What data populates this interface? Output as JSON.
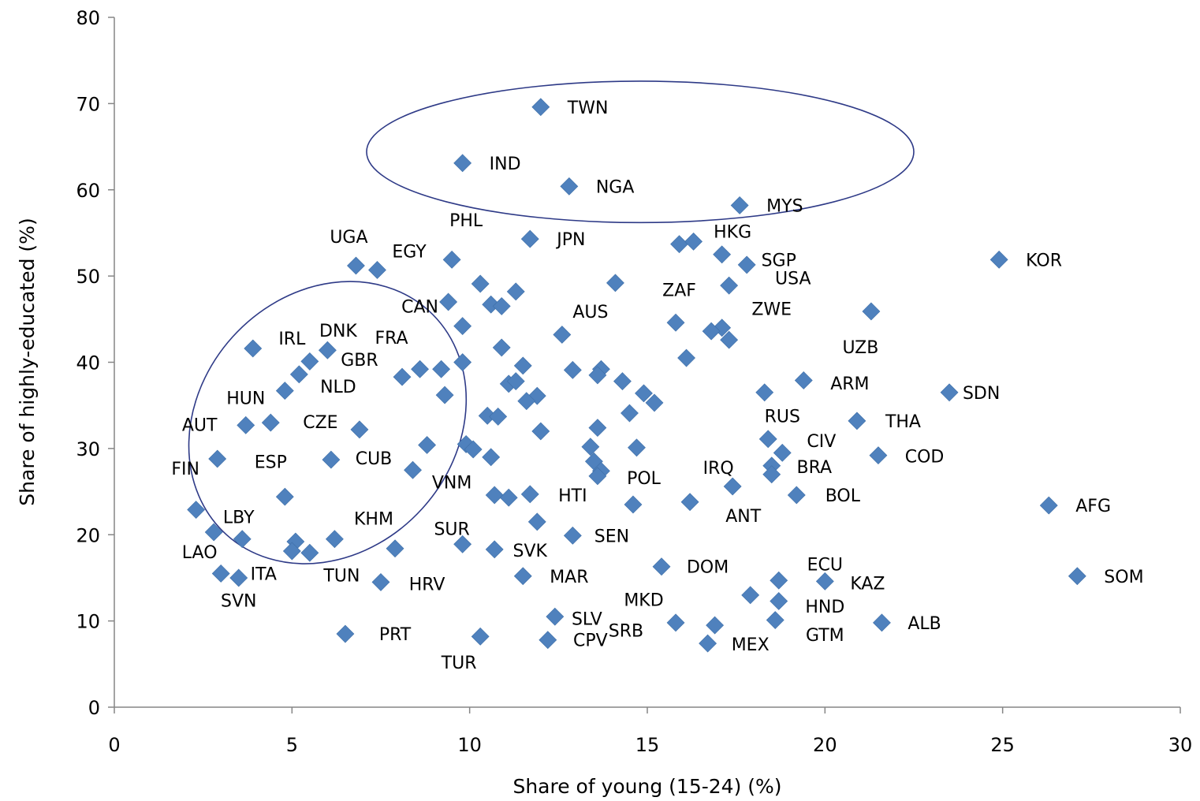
{
  "chart_data": {
    "type": "scatter",
    "xlabel": "Share of young (15-24) (%)",
    "ylabel": "Share of highly-educated (%)",
    "xlim": [
      0,
      30
    ],
    "ylim": [
      0,
      80
    ],
    "xticks": [
      0,
      5,
      10,
      15,
      20,
      25,
      30
    ],
    "yticks": [
      0,
      10,
      20,
      30,
      40,
      50,
      60,
      70,
      80
    ],
    "grid": false,
    "legend": "none",
    "marker_color": "#4F81BD",
    "ellipse_color": "#2E3A87",
    "points": [
      {
        "x": 12.0,
        "y": 69.6,
        "label": "TWN"
      },
      {
        "x": 9.8,
        "y": 63.1,
        "label": "IND"
      },
      {
        "x": 12.8,
        "y": 60.4,
        "label": "NGA"
      },
      {
        "x": 17.6,
        "y": 58.2,
        "label": "MYS"
      },
      {
        "x": 11.7,
        "y": 54.3,
        "label": "JPN"
      },
      {
        "x": 15.9,
        "y": 53.7,
        "label": ""
      },
      {
        "x": 16.3,
        "y": 54.0,
        "label": ""
      },
      {
        "x": 17.1,
        "y": 52.5,
        "label": ""
      },
      {
        "x": 17.8,
        "y": 51.3,
        "label": ""
      },
      {
        "x": 24.9,
        "y": 51.9,
        "label": "KOR"
      },
      {
        "x": 6.8,
        "y": 51.2,
        "label": ""
      },
      {
        "x": 7.4,
        "y": 50.7,
        "label": ""
      },
      {
        "x": 9.5,
        "y": 51.9,
        "label": ""
      },
      {
        "x": 10.3,
        "y": 49.1,
        "label": ""
      },
      {
        "x": 11.3,
        "y": 48.2,
        "label": ""
      },
      {
        "x": 14.1,
        "y": 49.2,
        "label": ""
      },
      {
        "x": 17.3,
        "y": 48.9,
        "label": ""
      },
      {
        "x": 9.4,
        "y": 47.0,
        "label": ""
      },
      {
        "x": 10.6,
        "y": 46.7,
        "label": ""
      },
      {
        "x": 10.9,
        "y": 46.5,
        "label": ""
      },
      {
        "x": 21.3,
        "y": 45.9,
        "label": ""
      },
      {
        "x": 9.8,
        "y": 44.2,
        "label": ""
      },
      {
        "x": 15.8,
        "y": 44.6,
        "label": ""
      },
      {
        "x": 17.1,
        "y": 44.0,
        "label": ""
      },
      {
        "x": 16.8,
        "y": 43.6,
        "label": ""
      },
      {
        "x": 12.6,
        "y": 43.2,
        "label": ""
      },
      {
        "x": 17.3,
        "y": 42.6,
        "label": ""
      },
      {
        "x": 3.9,
        "y": 41.6,
        "label": ""
      },
      {
        "x": 6.0,
        "y": 41.4,
        "label": ""
      },
      {
        "x": 10.9,
        "y": 41.7,
        "label": ""
      },
      {
        "x": 16.1,
        "y": 40.5,
        "label": ""
      },
      {
        "x": 5.5,
        "y": 40.1,
        "label": ""
      },
      {
        "x": 9.8,
        "y": 40.0,
        "label": ""
      },
      {
        "x": 11.5,
        "y": 39.6,
        "label": ""
      },
      {
        "x": 8.6,
        "y": 39.2,
        "label": ""
      },
      {
        "x": 9.2,
        "y": 39.2,
        "label": ""
      },
      {
        "x": 12.9,
        "y": 39.1,
        "label": ""
      },
      {
        "x": 13.7,
        "y": 39.2,
        "label": ""
      },
      {
        "x": 5.2,
        "y": 38.6,
        "label": ""
      },
      {
        "x": 8.1,
        "y": 38.3,
        "label": ""
      },
      {
        "x": 13.6,
        "y": 38.5,
        "label": ""
      },
      {
        "x": 14.3,
        "y": 37.8,
        "label": ""
      },
      {
        "x": 11.1,
        "y": 37.5,
        "label": ""
      },
      {
        "x": 11.3,
        "y": 37.8,
        "label": ""
      },
      {
        "x": 19.4,
        "y": 37.9,
        "label": ""
      },
      {
        "x": 4.8,
        "y": 36.7,
        "label": ""
      },
      {
        "x": 9.3,
        "y": 36.2,
        "label": ""
      },
      {
        "x": 11.9,
        "y": 36.1,
        "label": ""
      },
      {
        "x": 11.6,
        "y": 35.5,
        "label": ""
      },
      {
        "x": 14.9,
        "y": 36.4,
        "label": ""
      },
      {
        "x": 15.2,
        "y": 35.3,
        "label": ""
      },
      {
        "x": 18.3,
        "y": 36.5,
        "label": ""
      },
      {
        "x": 23.5,
        "y": 36.5,
        "label": ""
      },
      {
        "x": 14.5,
        "y": 34.1,
        "label": ""
      },
      {
        "x": 10.5,
        "y": 33.8,
        "label": ""
      },
      {
        "x": 10.8,
        "y": 33.7,
        "label": ""
      },
      {
        "x": 20.9,
        "y": 33.2,
        "label": ""
      },
      {
        "x": 3.7,
        "y": 32.7,
        "label": ""
      },
      {
        "x": 4.4,
        "y": 33.0,
        "label": ""
      },
      {
        "x": 6.9,
        "y": 32.2,
        "label": ""
      },
      {
        "x": 13.6,
        "y": 32.4,
        "label": ""
      },
      {
        "x": 12.0,
        "y": 32.0,
        "label": ""
      },
      {
        "x": 18.4,
        "y": 31.1,
        "label": ""
      },
      {
        "x": 8.8,
        "y": 30.4,
        "label": ""
      },
      {
        "x": 9.9,
        "y": 30.5,
        "label": ""
      },
      {
        "x": 10.1,
        "y": 29.9,
        "label": ""
      },
      {
        "x": 13.4,
        "y": 30.2,
        "label": ""
      },
      {
        "x": 14.7,
        "y": 30.1,
        "label": ""
      },
      {
        "x": 10.6,
        "y": 29.0,
        "label": ""
      },
      {
        "x": 18.8,
        "y": 29.5,
        "label": ""
      },
      {
        "x": 21.5,
        "y": 29.2,
        "label": ""
      },
      {
        "x": 2.9,
        "y": 28.8,
        "label": ""
      },
      {
        "x": 6.1,
        "y": 28.7,
        "label": ""
      },
      {
        "x": 13.5,
        "y": 28.5,
        "label": ""
      },
      {
        "x": 18.5,
        "y": 28.0,
        "label": ""
      },
      {
        "x": 8.4,
        "y": 27.5,
        "label": ""
      },
      {
        "x": 13.7,
        "y": 27.4,
        "label": ""
      },
      {
        "x": 13.6,
        "y": 26.8,
        "label": ""
      },
      {
        "x": 18.5,
        "y": 27.0,
        "label": ""
      },
      {
        "x": 17.4,
        "y": 25.6,
        "label": ""
      },
      {
        "x": 4.8,
        "y": 24.4,
        "label": ""
      },
      {
        "x": 10.7,
        "y": 24.6,
        "label": ""
      },
      {
        "x": 11.1,
        "y": 24.3,
        "label": ""
      },
      {
        "x": 11.7,
        "y": 24.7,
        "label": ""
      },
      {
        "x": 19.2,
        "y": 24.6,
        "label": ""
      },
      {
        "x": 14.6,
        "y": 23.5,
        "label": ""
      },
      {
        "x": 16.2,
        "y": 23.8,
        "label": ""
      },
      {
        "x": 26.3,
        "y": 23.4,
        "label": "AFG"
      },
      {
        "x": 2.3,
        "y": 22.9,
        "label": ""
      },
      {
        "x": 11.9,
        "y": 21.5,
        "label": ""
      },
      {
        "x": 2.8,
        "y": 20.3,
        "label": ""
      },
      {
        "x": 12.9,
        "y": 19.9,
        "label": ""
      },
      {
        "x": 3.6,
        "y": 19.5,
        "label": ""
      },
      {
        "x": 6.2,
        "y": 19.5,
        "label": ""
      },
      {
        "x": 5.1,
        "y": 19.2,
        "label": ""
      },
      {
        "x": 9.8,
        "y": 18.9,
        "label": ""
      },
      {
        "x": 7.9,
        "y": 18.4,
        "label": ""
      },
      {
        "x": 10.7,
        "y": 18.3,
        "label": ""
      },
      {
        "x": 5.0,
        "y": 18.1,
        "label": ""
      },
      {
        "x": 5.5,
        "y": 17.9,
        "label": ""
      },
      {
        "x": 15.4,
        "y": 16.3,
        "label": ""
      },
      {
        "x": 3.0,
        "y": 15.5,
        "label": ""
      },
      {
        "x": 3.5,
        "y": 15.0,
        "label": ""
      },
      {
        "x": 11.5,
        "y": 15.2,
        "label": ""
      },
      {
        "x": 7.5,
        "y": 14.5,
        "label": ""
      },
      {
        "x": 18.7,
        "y": 14.7,
        "label": ""
      },
      {
        "x": 20.0,
        "y": 14.6,
        "label": ""
      },
      {
        "x": 27.1,
        "y": 15.2,
        "label": "SOM"
      },
      {
        "x": 17.9,
        "y": 13.0,
        "label": ""
      },
      {
        "x": 18.7,
        "y": 12.3,
        "label": ""
      },
      {
        "x": 12.4,
        "y": 10.5,
        "label": ""
      },
      {
        "x": 18.6,
        "y": 10.1,
        "label": ""
      },
      {
        "x": 15.8,
        "y": 9.8,
        "label": ""
      },
      {
        "x": 21.6,
        "y": 9.8,
        "label": ""
      },
      {
        "x": 16.9,
        "y": 9.5,
        "label": ""
      },
      {
        "x": 6.5,
        "y": 8.5,
        "label": ""
      },
      {
        "x": 10.3,
        "y": 8.2,
        "label": ""
      },
      {
        "x": 12.2,
        "y": 7.8,
        "label": ""
      },
      {
        "x": 16.7,
        "y": 7.4,
        "label": ""
      }
    ],
    "annotations": [
      {
        "text": "PHL",
        "x": 9.9,
        "y": 56.5
      },
      {
        "text": "HKG",
        "x": 17.4,
        "y": 55.2
      },
      {
        "text": "SGP",
        "x": 18.7,
        "y": 51.9
      },
      {
        "text": "UGA",
        "x": 6.6,
        "y": 54.6
      },
      {
        "text": "EGY",
        "x": 8.3,
        "y": 52.9
      },
      {
        "text": "USA",
        "x": 19.1,
        "y": 49.8
      },
      {
        "text": "ZAF",
        "x": 15.9,
        "y": 48.4
      },
      {
        "text": "CAN",
        "x": 8.6,
        "y": 46.5
      },
      {
        "text": "AUS",
        "x": 13.4,
        "y": 45.9
      },
      {
        "text": "ZWE",
        "x": 18.5,
        "y": 46.2
      },
      {
        "text": "DNK",
        "x": 6.3,
        "y": 43.7
      },
      {
        "text": "IRL",
        "x": 5.0,
        "y": 42.8
      },
      {
        "text": "FRA",
        "x": 7.8,
        "y": 42.9
      },
      {
        "text": "UZB",
        "x": 21.0,
        "y": 41.8
      },
      {
        "text": "GBR",
        "x": 6.9,
        "y": 40.3
      },
      {
        "text": "NLD",
        "x": 6.3,
        "y": 37.2
      },
      {
        "text": "HUN",
        "x": 3.7,
        "y": 35.9
      },
      {
        "text": "ARM",
        "x": 20.7,
        "y": 37.6
      },
      {
        "text": "SDN",
        "x": 24.4,
        "y": 36.5
      },
      {
        "text": "THA",
        "x": 22.2,
        "y": 33.2
      },
      {
        "text": "RUS",
        "x": 18.8,
        "y": 33.8
      },
      {
        "text": "CZE",
        "x": 5.8,
        "y": 33.1
      },
      {
        "text": "AUT",
        "x": 2.4,
        "y": 32.8
      },
      {
        "text": "CIV",
        "x": 19.9,
        "y": 30.9
      },
      {
        "text": "COD",
        "x": 22.8,
        "y": 29.1
      },
      {
        "text": "CUB",
        "x": 7.3,
        "y": 28.9
      },
      {
        "text": "ESP",
        "x": 4.4,
        "y": 28.5
      },
      {
        "text": "BRA",
        "x": 19.7,
        "y": 27.9
      },
      {
        "text": "IRQ",
        "x": 17.0,
        "y": 27.8
      },
      {
        "text": "FIN",
        "x": 2.0,
        "y": 27.7
      },
      {
        "text": "POL",
        "x": 14.9,
        "y": 26.6
      },
      {
        "text": "VNM",
        "x": 9.5,
        "y": 26.1
      },
      {
        "text": "BOL",
        "x": 20.5,
        "y": 24.6
      },
      {
        "text": "HTI",
        "x": 12.9,
        "y": 24.6
      },
      {
        "text": "ANT",
        "x": 17.7,
        "y": 22.2
      },
      {
        "text": "LBY",
        "x": 3.5,
        "y": 22.1
      },
      {
        "text": "KHM",
        "x": 7.3,
        "y": 21.9
      },
      {
        "text": "SUR",
        "x": 9.5,
        "y": 20.7
      },
      {
        "text": "SEN",
        "x": 14.0,
        "y": 19.9
      },
      {
        "text": "SVK",
        "x": 11.7,
        "y": 18.2
      },
      {
        "text": "LAO",
        "x": 2.4,
        "y": 18.0
      },
      {
        "text": "ECU",
        "x": 20.0,
        "y": 16.6
      },
      {
        "text": "DOM",
        "x": 16.7,
        "y": 16.3
      },
      {
        "text": "ITA",
        "x": 4.2,
        "y": 15.5
      },
      {
        "text": "TUN",
        "x": 6.4,
        "y": 15.3
      },
      {
        "text": "MAR",
        "x": 12.8,
        "y": 15.2
      },
      {
        "text": "HRV",
        "x": 8.8,
        "y": 14.3
      },
      {
        "text": "KAZ",
        "x": 21.2,
        "y": 14.4
      },
      {
        "text": "SVN",
        "x": 3.5,
        "y": 12.4
      },
      {
        "text": "MKD",
        "x": 14.9,
        "y": 12.5
      },
      {
        "text": "HND",
        "x": 20.0,
        "y": 11.7
      },
      {
        "text": "SLV",
        "x": 13.3,
        "y": 10.3
      },
      {
        "text": "ALB",
        "x": 22.8,
        "y": 9.8
      },
      {
        "text": "SRB",
        "x": 14.4,
        "y": 8.9
      },
      {
        "text": "PRT",
        "x": 7.9,
        "y": 8.5
      },
      {
        "text": "GTM",
        "x": 20.0,
        "y": 8.4
      },
      {
        "text": "CPV",
        "x": 13.4,
        "y": 7.8
      },
      {
        "text": "MEX",
        "x": 17.9,
        "y": 7.3
      },
      {
        "text": "TUR",
        "x": 9.7,
        "y": 5.2
      }
    ],
    "ellipses": [
      {
        "cx": 14.8,
        "cy": 64.4,
        "rx": 7.7,
        "ry": 8.2
      },
      {
        "cx": 6.0,
        "cy": 33.0,
        "rx": 3.6,
        "ry": 17.5,
        "rotate": 42
      }
    ]
  }
}
